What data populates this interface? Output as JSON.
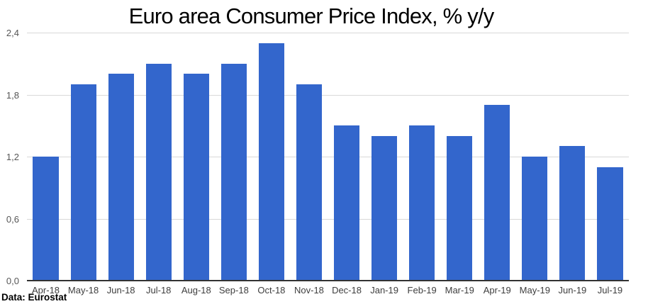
{
  "chart_data": {
    "type": "bar",
    "title": "Euro area Consumer Price Index, % y/y",
    "categories": [
      "Apr-18",
      "May-18",
      "Jun-18",
      "Jul-18",
      "Aug-18",
      "Sep-18",
      "Oct-18",
      "Nov-18",
      "Dec-18",
      "Jan-19",
      "Feb-19",
      "Mar-19",
      "Apr-19",
      "May-19",
      "Jun-19",
      "Jul-19"
    ],
    "values": [
      1.2,
      1.9,
      2.0,
      2.1,
      2.0,
      2.1,
      2.3,
      1.9,
      1.5,
      1.4,
      1.5,
      1.4,
      1.7,
      1.2,
      1.3,
      1.1
    ],
    "xlabel": "",
    "ylabel": "",
    "ylim": [
      0,
      2.4
    ],
    "y_ticks": [
      {
        "value": 0.0,
        "label": "0,0"
      },
      {
        "value": 0.6,
        "label": "0,6"
      },
      {
        "value": 1.2,
        "label": "1,2"
      },
      {
        "value": 1.8,
        "label": "1,8"
      },
      {
        "value": 2.4,
        "label": "2,4"
      }
    ],
    "grid": true,
    "legend_position": "none",
    "bar_color": "#3366cc",
    "gridline_color": "#d8d8d8",
    "axis_line_color": "#333333"
  },
  "source_note": "Data: Eurostat"
}
